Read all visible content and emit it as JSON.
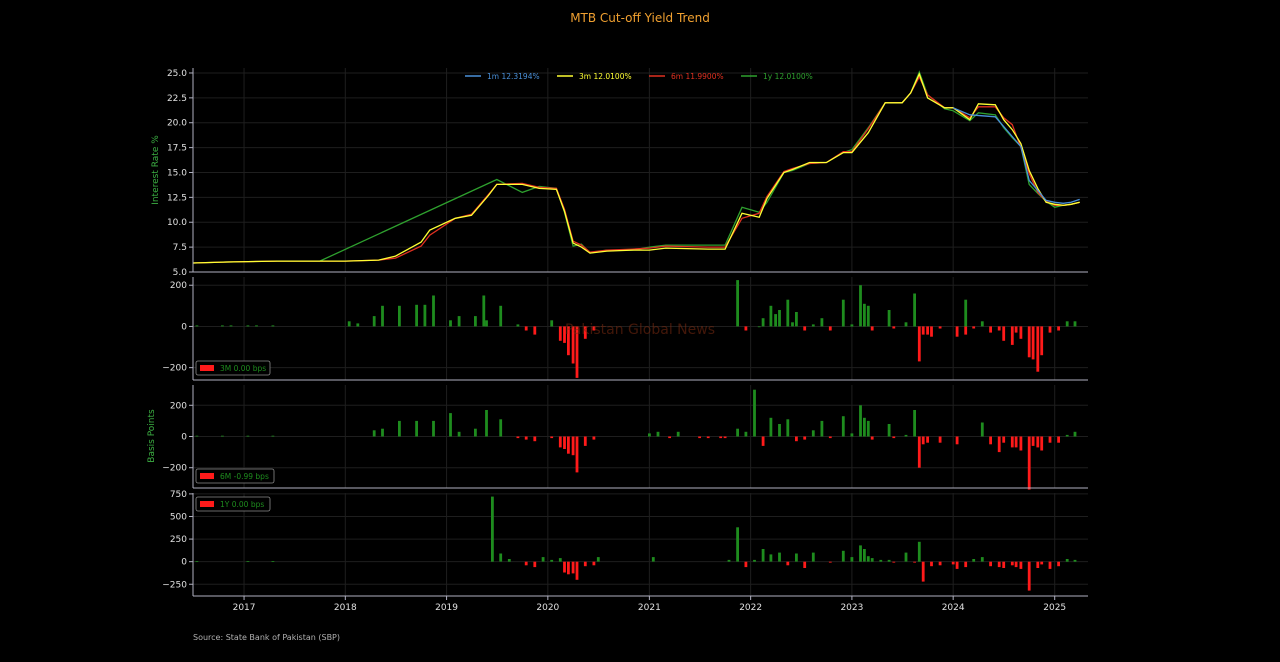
{
  "chart_data": [
    {
      "type": "line",
      "title": "MTB Cut-off Yield Trend",
      "ylabel": "Interest Rate %",
      "ylim": [
        5.0,
        25.5
      ],
      "yticks": [
        "5.0",
        "7.5",
        "10.0",
        "12.5",
        "15.0",
        "17.5",
        "20.0",
        "22.5",
        "25.0"
      ],
      "grid": true,
      "legend_position": "top-center",
      "series": [
        {
          "name": "1m 12.3194%",
          "color": "#4a90d9",
          "x": [
            "2024-01-01",
            "2024-03-01",
            "2024-06-01",
            "2024-09-01",
            "2024-10-01",
            "2024-11-01",
            "2024-12-01",
            "2025-01-01",
            "2025-02-01",
            "2025-03-01",
            "2025-04-01"
          ],
          "y": [
            21.5,
            20.8,
            20.6,
            17.6,
            14.2,
            13.2,
            12.2,
            12.0,
            11.9,
            12.0,
            12.3
          ]
        },
        {
          "name": "3m 12.0100%",
          "color": "#ffff33",
          "x": [
            "2016-07-01",
            "2016-11-01",
            "2017-05-01",
            "2017-10-01",
            "2018-01-01",
            "2018-05-01",
            "2018-07-01",
            "2018-10-01",
            "2018-11-01",
            "2019-02-01",
            "2019-04-01",
            "2019-06-01",
            "2019-07-01",
            "2019-10-01",
            "2019-12-01",
            "2020-02-01",
            "2020-03-01",
            "2020-04-01",
            "2020-05-01",
            "2020-06-01",
            "2020-08-01",
            "2020-11-01",
            "2021-01-01",
            "2021-03-01",
            "2021-08-01",
            "2021-10-01",
            "2021-12-01",
            "2022-02-01",
            "2022-03-01",
            "2022-05-01",
            "2022-06-01",
            "2022-08-01",
            "2022-10-01",
            "2022-12-01",
            "2023-01-01",
            "2023-03-01",
            "2023-05-01",
            "2023-07-01",
            "2023-08-01",
            "2023-09-01",
            "2023-10-01",
            "2023-12-01",
            "2024-01-01",
            "2024-03-01",
            "2024-04-01",
            "2024-06-01",
            "2024-07-01",
            "2024-08-01",
            "2024-09-01",
            "2024-10-01",
            "2024-11-01",
            "2024-12-01",
            "2025-01-01",
            "2025-02-01",
            "2025-03-01",
            "2025-04-01"
          ],
          "y": [
            5.9,
            6.0,
            6.1,
            6.1,
            6.1,
            6.2,
            6.6,
            8.0,
            9.2,
            10.4,
            10.7,
            12.7,
            13.8,
            13.8,
            13.4,
            13.3,
            11.1,
            7.9,
            7.5,
            6.9,
            7.1,
            7.2,
            7.2,
            7.4,
            7.3,
            7.3,
            10.9,
            10.5,
            12.4,
            15.0,
            15.3,
            16.0,
            16.0,
            17.0,
            17.0,
            19.0,
            22.0,
            22.0,
            23.0,
            24.9,
            22.5,
            21.5,
            21.5,
            20.3,
            21.9,
            21.8,
            20.3,
            19.3,
            17.9,
            15.2,
            13.4,
            12.0,
            11.8,
            11.7,
            11.8,
            12.0
          ]
        },
        {
          "name": "6m 11.9900%",
          "color": "#e03020",
          "x": [
            "2016-07-01",
            "2016-11-01",
            "2017-05-01",
            "2017-10-01",
            "2018-01-01",
            "2018-05-01",
            "2018-07-01",
            "2018-10-01",
            "2018-11-01",
            "2019-02-01",
            "2019-04-01",
            "2019-06-01",
            "2019-07-01",
            "2019-10-01",
            "2019-12-01",
            "2020-02-01",
            "2020-03-01",
            "2020-04-01",
            "2020-05-01",
            "2020-06-01",
            "2020-08-01",
            "2020-11-01",
            "2021-01-01",
            "2021-03-01",
            "2021-08-01",
            "2021-10-01",
            "2021-12-01",
            "2022-02-01",
            "2022-03-01",
            "2022-05-01",
            "2022-06-01",
            "2022-08-01",
            "2022-10-01",
            "2022-12-01",
            "2023-01-01",
            "2023-03-01",
            "2023-05-01",
            "2023-07-01",
            "2023-08-01",
            "2023-09-01",
            "2023-10-01",
            "2023-12-01",
            "2024-01-01",
            "2024-03-01",
            "2024-04-01",
            "2024-06-01",
            "2024-07-01",
            "2024-08-01",
            "2024-09-01",
            "2024-10-01",
            "2024-11-01",
            "2024-12-01",
            "2025-01-01",
            "2025-02-01",
            "2025-03-01",
            "2025-04-01"
          ],
          "y": [
            5.9,
            6.0,
            6.1,
            6.1,
            6.1,
            6.2,
            6.4,
            7.6,
            8.7,
            10.4,
            10.8,
            12.8,
            13.8,
            13.9,
            13.5,
            13.4,
            11.3,
            8.1,
            7.7,
            7.0,
            7.2,
            7.3,
            7.4,
            7.6,
            7.5,
            7.5,
            10.4,
            10.9,
            12.6,
            15.1,
            15.4,
            15.9,
            16.0,
            17.1,
            17.1,
            19.4,
            22.0,
            22.0,
            23.0,
            24.6,
            22.8,
            21.5,
            21.5,
            20.5,
            21.6,
            21.6,
            20.5,
            19.8,
            17.5,
            14.9,
            13.0,
            12.1,
            11.7,
            11.7,
            11.8,
            11.99
          ]
        },
        {
          "name": "1y 12.0100%",
          "color": "#2ea02e",
          "x": [
            "2016-07-01",
            "2016-11-01",
            "2017-05-01",
            "2017-10-01",
            "2019-07-01",
            "2019-10-01",
            "2019-12-01",
            "2020-02-01",
            "2020-03-01",
            "2020-04-01",
            "2020-05-01",
            "2020-06-01",
            "2020-08-01",
            "2020-11-01",
            "2021-01-01",
            "2021-03-01",
            "2021-10-01",
            "2021-12-01",
            "2022-02-01",
            "2022-03-01",
            "2022-05-01",
            "2022-06-01",
            "2022-08-01",
            "2022-10-01",
            "2022-12-01",
            "2023-01-01",
            "2023-03-01",
            "2023-05-01",
            "2023-07-01",
            "2023-08-01",
            "2023-09-01",
            "2023-10-01",
            "2023-12-01",
            "2024-01-01",
            "2024-03-01",
            "2024-04-01",
            "2024-06-01",
            "2024-07-01",
            "2024-08-01",
            "2024-09-01",
            "2024-10-01",
            "2024-11-01",
            "2024-12-01",
            "2025-01-01",
            "2025-02-01",
            "2025-03-01",
            "2025-04-01"
          ],
          "y": [
            5.9,
            6.0,
            6.1,
            6.1,
            14.3,
            13.0,
            13.6,
            13.4,
            11.0,
            7.6,
            7.8,
            6.9,
            7.2,
            7.2,
            7.5,
            7.7,
            7.7,
            11.5,
            11.0,
            12.0,
            15.0,
            15.2,
            15.9,
            16.0,
            17.0,
            17.3,
            19.5,
            22.0,
            22.0,
            23.0,
            25.1,
            22.8,
            21.4,
            21.2,
            20.2,
            21.0,
            20.8,
            19.5,
            18.5,
            17.6,
            13.8,
            12.9,
            12.1,
            11.5,
            11.7,
            11.8,
            12.0
          ]
        }
      ]
    },
    {
      "type": "bar",
      "ylabel": "",
      "ylim": [
        -260,
        240
      ],
      "yticks": [
        "200",
        "0",
        "−200"
      ],
      "legend": "3M 0.00 bps",
      "colors": {
        "positive": "#1e8c1e",
        "negative": "#ff1a1a"
      },
      "x": [
        "2016-07-15",
        "2016-10-15",
        "2016-11-15",
        "2017-01-15",
        "2017-02-15",
        "2017-04-15",
        "2018-01-15",
        "2018-02-15",
        "2018-04-15",
        "2018-05-15",
        "2018-07-15",
        "2018-09-15",
        "2018-10-15",
        "2018-11-15",
        "2019-01-15",
        "2019-02-15",
        "2019-04-15",
        "2019-05-15",
        "2019-05-25",
        "2019-07-15",
        "2019-09-15",
        "2019-10-15",
        "2019-11-15",
        "2020-01-15",
        "2020-02-15",
        "2020-03-01",
        "2020-03-15",
        "2020-04-01",
        "2020-04-15",
        "2020-05-15",
        "2020-06-15",
        "2021-11-15",
        "2021-12-15",
        "2022-02-01",
        "2022-02-15",
        "2022-03-15",
        "2022-04-01",
        "2022-04-15",
        "2022-05-15",
        "2022-06-01",
        "2022-06-15",
        "2022-07-15",
        "2022-08-15",
        "2022-09-15",
        "2022-10-15",
        "2022-12-01",
        "2023-01-01",
        "2023-02-01",
        "2023-02-15",
        "2023-03-01",
        "2023-03-15",
        "2023-05-15",
        "2023-06-01",
        "2023-07-15",
        "2023-08-15",
        "2023-09-01",
        "2023-09-15",
        "2023-10-01",
        "2023-10-15",
        "2023-11-15",
        "2024-01-15",
        "2024-02-15",
        "2024-02-15",
        "2024-03-15",
        "2024-04-15",
        "2024-05-15",
        "2024-06-15",
        "2024-07-01",
        "2024-08-01",
        "2024-08-15",
        "2024-09-01",
        "2024-10-01",
        "2024-10-15",
        "2024-11-01",
        "2024-11-15",
        "2024-12-15",
        "2025-01-15",
        "2025-02-15",
        "2025-03-15"
      ],
      "values": [
        5,
        5,
        5,
        5,
        5,
        5,
        25,
        15,
        50,
        100,
        100,
        105,
        105,
        150,
        30,
        50,
        50,
        150,
        30,
        100,
        10,
        -20,
        -40,
        30,
        -70,
        -80,
        -140,
        -180,
        -250,
        -60,
        -20,
        225,
        -20,
        0,
        40,
        100,
        60,
        80,
        130,
        20,
        70,
        -20,
        10,
        40,
        -20,
        130,
        10,
        200,
        110,
        100,
        -20,
        80,
        -10,
        20,
        160,
        -170,
        -40,
        -40,
        -50,
        -10,
        -50,
        -40,
        130,
        -10,
        25,
        -30,
        -20,
        -70,
        -90,
        -30,
        -60,
        -150,
        -160,
        -220,
        -140,
        -30,
        -20,
        25,
        25
      ]
    },
    {
      "type": "bar",
      "ylabel": "Basis Points",
      "ylim": [
        -330,
        330
      ],
      "yticks": [
        "200",
        "0",
        "−200"
      ],
      "legend": "6M -0.99 bps",
      "colors": {
        "positive": "#1e8c1e",
        "negative": "#ff1a1a"
      },
      "x": [
        "2016-07-15",
        "2016-10-15",
        "2017-01-15",
        "2017-04-15",
        "2018-04-15",
        "2018-05-15",
        "2018-07-15",
        "2018-09-15",
        "2018-11-15",
        "2019-01-15",
        "2019-02-15",
        "2019-04-15",
        "2019-05-25",
        "2019-07-15",
        "2019-09-15",
        "2019-10-15",
        "2019-11-15",
        "2020-01-15",
        "2020-02-15",
        "2020-03-01",
        "2020-03-15",
        "2020-04-01",
        "2020-04-15",
        "2020-05-15",
        "2020-06-15",
        "2021-01-01",
        "2021-02-01",
        "2021-03-15",
        "2021-04-15",
        "2021-07-01",
        "2021-08-01",
        "2021-09-15",
        "2021-10-01",
        "2021-11-15",
        "2021-12-15",
        "2022-01-15",
        "2022-02-15",
        "2022-03-15",
        "2022-04-15",
        "2022-05-15",
        "2022-06-15",
        "2022-07-15",
        "2022-08-15",
        "2022-09-15",
        "2022-10-15",
        "2022-12-01",
        "2023-01-01",
        "2023-02-01",
        "2023-02-15",
        "2023-03-01",
        "2023-03-15",
        "2023-05-15",
        "2023-06-01",
        "2023-07-15",
        "2023-08-15",
        "2023-09-01",
        "2023-09-15",
        "2023-10-01",
        "2023-11-15",
        "2024-01-15",
        "2024-04-15",
        "2024-05-15",
        "2024-06-15",
        "2024-07-01",
        "2024-08-01",
        "2024-08-15",
        "2024-09-01",
        "2024-10-01",
        "2024-10-15",
        "2024-11-01",
        "2024-11-15",
        "2024-12-15",
        "2025-01-15",
        "2025-02-15",
        "2025-03-15"
      ],
      "values": [
        5,
        5,
        5,
        5,
        40,
        50,
        100,
        100,
        100,
        150,
        30,
        50,
        170,
        110,
        -10,
        -20,
        -30,
        -10,
        -70,
        -80,
        -110,
        -120,
        -230,
        -60,
        -20,
        20,
        30,
        -10,
        30,
        -10,
        -10,
        -10,
        -10,
        50,
        30,
        300,
        -60,
        120,
        80,
        110,
        -30,
        -20,
        40,
        100,
        -10,
        130,
        20,
        200,
        120,
        100,
        -20,
        80,
        -10,
        10,
        170,
        -200,
        -50,
        -40,
        -40,
        -50,
        90,
        -50,
        -100,
        -40,
        -70,
        -70,
        -90,
        -340,
        -60,
        -70,
        -90,
        -40,
        -40,
        10,
        30
      ]
    },
    {
      "type": "bar",
      "ylabel": "",
      "ylim": [
        -380,
        760
      ],
      "yticks": [
        "750",
        "500",
        "250",
        "0",
        "−250"
      ],
      "legend": "1Y 0.00 bps",
      "colors": {
        "positive": "#1e8c1e",
        "negative": "#ff1a1a"
      },
      "x": [
        "2016-07-15",
        "2017-01-15",
        "2017-04-15",
        "2019-06-15",
        "2019-07-15",
        "2019-08-15",
        "2019-10-15",
        "2019-11-15",
        "2019-12-15",
        "2020-01-15",
        "2020-02-15",
        "2020-03-01",
        "2020-03-15",
        "2020-04-01",
        "2020-04-15",
        "2020-05-15",
        "2020-06-15",
        "2020-07-01",
        "2021-01-15",
        "2021-10-15",
        "2021-11-15",
        "2021-12-15",
        "2022-01-15",
        "2022-02-15",
        "2022-03-15",
        "2022-04-15",
        "2022-05-15",
        "2022-06-15",
        "2022-07-15",
        "2022-08-15",
        "2022-10-15",
        "2022-12-01",
        "2023-01-01",
        "2023-02-01",
        "2023-02-15",
        "2023-03-01",
        "2023-03-15",
        "2023-04-15",
        "2023-05-15",
        "2023-06-01",
        "2023-07-15",
        "2023-08-15",
        "2023-09-01",
        "2023-09-15",
        "2023-10-15",
        "2023-11-15",
        "2024-01-01",
        "2024-01-15",
        "2024-02-15",
        "2024-03-15",
        "2024-04-15",
        "2024-05-15",
        "2024-06-15",
        "2024-07-01",
        "2024-08-01",
        "2024-08-15",
        "2024-09-01",
        "2024-10-01",
        "2024-11-01",
        "2024-11-15",
        "2024-12-15",
        "2025-01-15",
        "2025-02-15",
        "2025-03-15"
      ],
      "values": [
        5,
        5,
        5,
        720,
        90,
        30,
        -40,
        -60,
        50,
        20,
        40,
        -120,
        -140,
        -130,
        -200,
        -50,
        -40,
        50,
        50,
        20,
        380,
        -60,
        20,
        140,
        80,
        100,
        -40,
        90,
        -70,
        100,
        -10,
        120,
        50,
        180,
        140,
        60,
        40,
        20,
        20,
        -10,
        100,
        -10,
        220,
        -220,
        -50,
        -40,
        -30,
        -80,
        -60,
        30,
        50,
        -50,
        -60,
        -70,
        -40,
        -60,
        -80,
        -320,
        -70,
        -30,
        -80,
        -50,
        30,
        20
      ]
    }
  ],
  "xaxis": {
    "tick_labels": [
      "2017",
      "2018",
      "2019",
      "2020",
      "2021",
      "2022",
      "2023",
      "2024",
      "2025"
    ],
    "range": [
      "2016-07-01",
      "2025-05-01"
    ]
  },
  "watermark": "Pakistan Global News",
  "source": "Source: State Bank of Pakistan (SBP)"
}
